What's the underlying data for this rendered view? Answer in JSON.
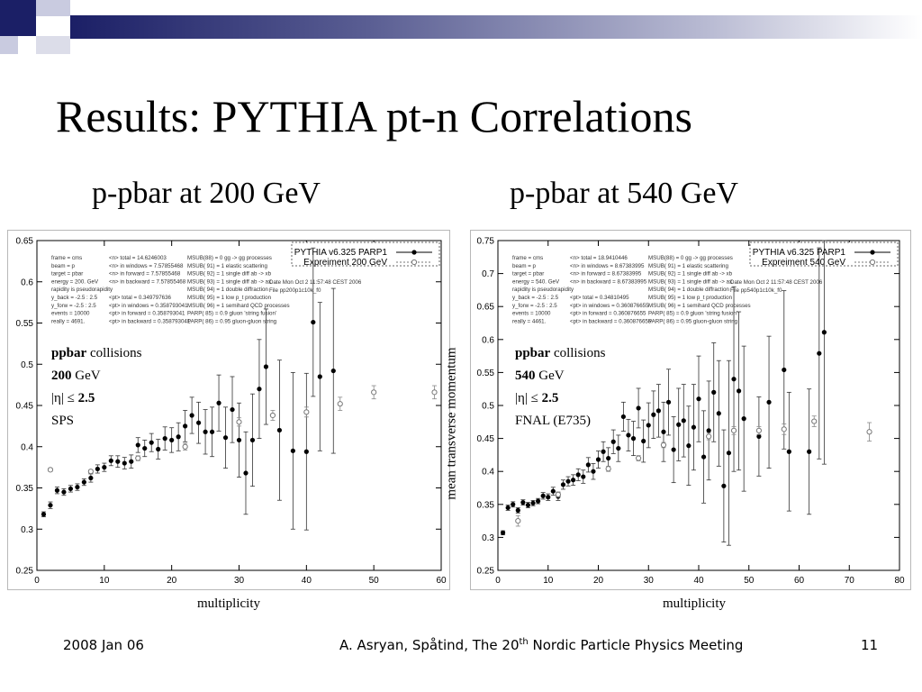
{
  "slide": {
    "title": "Results: PYTHIA pt-n Correlations",
    "subtitle_left": "p-pbar at 200 GeV",
    "subtitle_right": "p-pbar at 540 GeV",
    "xlabel_left": "multiplicity",
    "xlabel_right": "multiplicity",
    "ylabel_right": "mean transverse momentum",
    "theme_colors": {
      "dark_square": "#1b1f66",
      "light_square": "#c9cbe0",
      "bar_start": "#1b1f66"
    }
  },
  "footer": {
    "date": "2008 Jan 06",
    "credit_pre": "A. Asryan, Spåtind, The 20",
    "credit_sup": "th",
    "credit_post": " Nordic Particle Physics Meeting",
    "page": "11"
  },
  "chart_data": [
    {
      "type": "scatter",
      "xlim": [
        0,
        60
      ],
      "ylim": [
        0.25,
        0.65
      ],
      "xticks": [
        "0",
        "10",
        "20",
        "30",
        "40",
        "50",
        "60"
      ],
      "yticks": [
        "0.25",
        "0.3",
        "0.35",
        "0.4",
        "0.45",
        "0.5",
        "0.55",
        "0.6",
        "0.65"
      ],
      "legend": {
        "position": "top-right",
        "entries": [
          "PYTHIA v6.325 PARP1",
          "Expreiment 200 GeV"
        ]
      },
      "info_block": [
        [
          "frame   = cms",
          "<n> total       =  14.6246003",
          "MSUB(88) = 0 gg -> gg processes"
        ],
        [
          "beam    = p",
          "<n> in windows  =  7.57855468",
          "MSUB( 91) = 1 elastic scattering"
        ],
        [
          "target  = pbar",
          "<n> in forward  =  7.57855468",
          "MSUB( 92) = 1 single diff ab -> xb"
        ],
        [
          "energy  =   200. GeV",
          "<n> in backward =  7.57855468",
          "MSUB( 93) = 1 single diff ab -> ax"
        ],
        [
          "rapidity is pseudorapidity",
          "",
          "MSUB( 94) = 1 double diffraction"
        ],
        [
          "y_back  = -2.5 :  2.5",
          "<pt> total     =  0.349797636",
          "MSUB( 95) = 1 low p_t production"
        ],
        [
          "y_forw  = -2.5 :  2.5",
          "<pt> in windows = 0.358793041",
          "MSUB( 96) = 1 semihard QCD processes"
        ],
        [
          "events  = 10000",
          "<pt> in forward = 0.358793041",
          "PARP( 85) = 0.9 gluon 'string fusion'"
        ],
        [
          "really  =  4691.",
          "<pt> in backward = 0.358793041",
          "PARP( 86) = 0.95 gluon-gluon string"
        ]
      ],
      "info_right": [
        "Date Mon Oct  2 11:57:48 CEST 2006",
        "File pp200p1c10k_f0"
      ],
      "inset": [
        "ppbar",
        " collisions",
        "200",
        " GeV",
        "|η| ≤ ",
        "2.5",
        "SPS"
      ],
      "series": [
        {
          "name": "PYTHIA v6.325 PARP1",
          "marker": "filled",
          "points": [
            [
              1,
              0.318,
              0.003
            ],
            [
              2,
              0.329,
              0.004
            ],
            [
              3,
              0.347,
              0.004
            ],
            [
              4,
              0.345,
              0.004
            ],
            [
              5,
              0.349,
              0.004
            ],
            [
              6,
              0.351,
              0.004
            ],
            [
              7,
              0.357,
              0.004
            ],
            [
              8,
              0.362,
              0.005
            ],
            [
              9,
              0.373,
              0.005
            ],
            [
              10,
              0.375,
              0.005
            ],
            [
              11,
              0.383,
              0.006
            ],
            [
              12,
              0.382,
              0.007
            ],
            [
              13,
              0.38,
              0.007
            ],
            [
              14,
              0.382,
              0.008
            ],
            [
              15,
              0.402,
              0.009
            ],
            [
              16,
              0.398,
              0.01
            ],
            [
              17,
              0.405,
              0.011
            ],
            [
              18,
              0.397,
              0.012
            ],
            [
              19,
              0.41,
              0.014
            ],
            [
              20,
              0.408,
              0.015
            ],
            [
              21,
              0.412,
              0.017
            ],
            [
              22,
              0.425,
              0.019
            ],
            [
              23,
              0.438,
              0.022
            ],
            [
              24,
              0.429,
              0.025
            ],
            [
              25,
              0.418,
              0.027
            ],
            [
              26,
              0.418,
              0.03
            ],
            [
              27,
              0.453,
              0.034
            ],
            [
              28,
              0.411,
              0.037
            ],
            [
              29,
              0.445,
              0.04
            ],
            [
              30,
              0.408,
              0.045
            ],
            [
              31,
              0.368,
              0.05
            ],
            [
              32,
              0.408,
              0.056
            ],
            [
              33,
              0.47,
              0.06
            ],
            [
              34,
              0.497,
              0.07
            ],
            [
              36,
              0.42,
              0.085
            ],
            [
              38,
              0.395,
              0.095
            ],
            [
              40,
              0.394,
              0.095
            ],
            [
              41,
              0.551,
              0.09
            ],
            [
              42,
              0.485,
              0.09
            ],
            [
              44,
              0.492,
              0.1
            ]
          ]
        },
        {
          "name": "Expreiment 200 GeV",
          "marker": "open",
          "points": [
            [
              2,
              0.372,
              0.002
            ],
            [
              8,
              0.37,
              0.002
            ],
            [
              15,
              0.386,
              0.003
            ],
            [
              22,
              0.4,
              0.004
            ],
            [
              30,
              0.43,
              0.005
            ],
            [
              35,
              0.438,
              0.006
            ],
            [
              40,
              0.442,
              0.006
            ],
            [
              45,
              0.452,
              0.008
            ],
            [
              50,
              0.466,
              0.008
            ],
            [
              59,
              0.466,
              0.008
            ]
          ]
        }
      ]
    },
    {
      "type": "scatter",
      "xlim": [
        0,
        80
      ],
      "ylim": [
        0.25,
        0.75
      ],
      "xticks": [
        "0",
        "10",
        "20",
        "30",
        "40",
        "50",
        "60",
        "70",
        "80"
      ],
      "yticks": [
        "0.25",
        "0.3",
        "0.35",
        "0.4",
        "0.45",
        "0.5",
        "0.55",
        "0.6",
        "0.65",
        "0.7",
        "0.75"
      ],
      "legend": {
        "position": "top-right",
        "entries": [
          "PYTHIA v6.325 PARP1",
          "Expreiment 540 GeV"
        ]
      },
      "info_block": [
        [
          "frame   = cms",
          "<n> total       =  18.9410446",
          "MSUB(88) = 0 gg -> gg processes"
        ],
        [
          "beam    = p",
          "<n> in windows  =  8.67383995",
          "MSUB( 91) = 1 elastic scattering"
        ],
        [
          "target  = pbar",
          "<n> in forward  =  8.67383995",
          "MSUB( 92) = 1 single diff ab -> xb"
        ],
        [
          "energy  =   540. GeV",
          "<n> in backward =  8.67383995",
          "MSUB( 93) = 1 single diff ab -> ax"
        ],
        [
          "rapidity is pseudorapidity",
          "",
          "MSUB( 94) = 1 double diffraction"
        ],
        [
          "y_back  = -2.5 :  2.5",
          "<pt> total     =  0.34810495",
          "MSUB( 95) = 1 low p_t production"
        ],
        [
          "y_forw  = -2.5 :  2.5",
          "<pt> in windows = 0.360876655",
          "MSUB( 96) = 1 semihard QCD processes"
        ],
        [
          "events  = 10000",
          "<pt> in forward = 0.360876655",
          "PARP( 85) = 0.9 gluon 'string fusion'"
        ],
        [
          "really  =  4461.",
          "<pt> in backward = 0.360876655",
          "PARP( 86) = 0.95 gluon-gluon string"
        ]
      ],
      "info_right": [
        "Date Mon Oct  2 11:57:48 CEST 2006",
        "File pp540p1c10k_f0"
      ],
      "inset": [
        "ppbar",
        " collisions",
        "540",
        " GeV",
        "|η| ≤ ",
        "2.5",
        "FNAL (E735)"
      ],
      "series": [
        {
          "name": "PYTHIA v6.325 PARP1",
          "marker": "filled",
          "points": [
            [
              1,
              0.307,
              0.003
            ],
            [
              2,
              0.345,
              0.004
            ],
            [
              3,
              0.35,
              0.004
            ],
            [
              4,
              0.341,
              0.004
            ],
            [
              5,
              0.353,
              0.004
            ],
            [
              6,
              0.349,
              0.004
            ],
            [
              7,
              0.352,
              0.004
            ],
            [
              8,
              0.355,
              0.004
            ],
            [
              9,
              0.363,
              0.005
            ],
            [
              10,
              0.361,
              0.005
            ],
            [
              11,
              0.37,
              0.006
            ],
            [
              12,
              0.362,
              0.006
            ],
            [
              13,
              0.38,
              0.007
            ],
            [
              14,
              0.385,
              0.007
            ],
            [
              15,
              0.387,
              0.008
            ],
            [
              16,
              0.395,
              0.009
            ],
            [
              17,
              0.392,
              0.01
            ],
            [
              18,
              0.41,
              0.011
            ],
            [
              19,
              0.4,
              0.012
            ],
            [
              20,
              0.418,
              0.013
            ],
            [
              21,
              0.43,
              0.015
            ],
            [
              22,
              0.42,
              0.016
            ],
            [
              23,
              0.445,
              0.018
            ],
            [
              24,
              0.435,
              0.02
            ],
            [
              25,
              0.483,
              0.022
            ],
            [
              26,
              0.455,
              0.024
            ],
            [
              27,
              0.45,
              0.026
            ],
            [
              28,
              0.496,
              0.03
            ],
            [
              29,
              0.446,
              0.032
            ],
            [
              30,
              0.47,
              0.034
            ],
            [
              31,
              0.486,
              0.036
            ],
            [
              32,
              0.492,
              0.04
            ],
            [
              33,
              0.46,
              0.045
            ],
            [
              34,
              0.505,
              0.05
            ],
            [
              35,
              0.433,
              0.05
            ],
            [
              36,
              0.471,
              0.055
            ],
            [
              37,
              0.477,
              0.055
            ],
            [
              38,
              0.439,
              0.06
            ],
            [
              39,
              0.467,
              0.065
            ],
            [
              40,
              0.51,
              0.065
            ],
            [
              41,
              0.422,
              0.07
            ],
            [
              42,
              0.462,
              0.075
            ],
            [
              43,
              0.52,
              0.075
            ],
            [
              44,
              0.488,
              0.08
            ],
            [
              45,
              0.378,
              0.085
            ],
            [
              46,
              0.428,
              0.14
            ],
            [
              47,
              0.54,
              0.14
            ],
            [
              48,
              0.522,
              0.12
            ],
            [
              49,
              0.48,
              0.11
            ],
            [
              52,
              0.453,
              0.06
            ],
            [
              54,
              0.505,
              0.1
            ],
            [
              57,
              0.554,
              0.12
            ],
            [
              58,
              0.43,
              0.09
            ],
            [
              62,
              0.43,
              0.095
            ],
            [
              64,
              0.579,
              0.16
            ],
            [
              65,
              0.611,
              0.2
            ]
          ]
        },
        {
          "name": "Expreiment 540 GeV",
          "marker": "open",
          "points": [
            [
              4,
              0.325,
              0.008
            ],
            [
              12,
              0.365,
              0.004
            ],
            [
              22,
              0.404,
              0.004
            ],
            [
              28,
              0.42,
              0.004
            ],
            [
              33,
              0.44,
              0.004
            ],
            [
              42,
              0.453,
              0.005
            ],
            [
              47,
              0.462,
              0.006
            ],
            [
              52,
              0.462,
              0.006
            ],
            [
              57,
              0.464,
              0.008
            ],
            [
              63,
              0.476,
              0.008
            ],
            [
              74,
              0.46,
              0.014
            ]
          ]
        }
      ]
    }
  ]
}
